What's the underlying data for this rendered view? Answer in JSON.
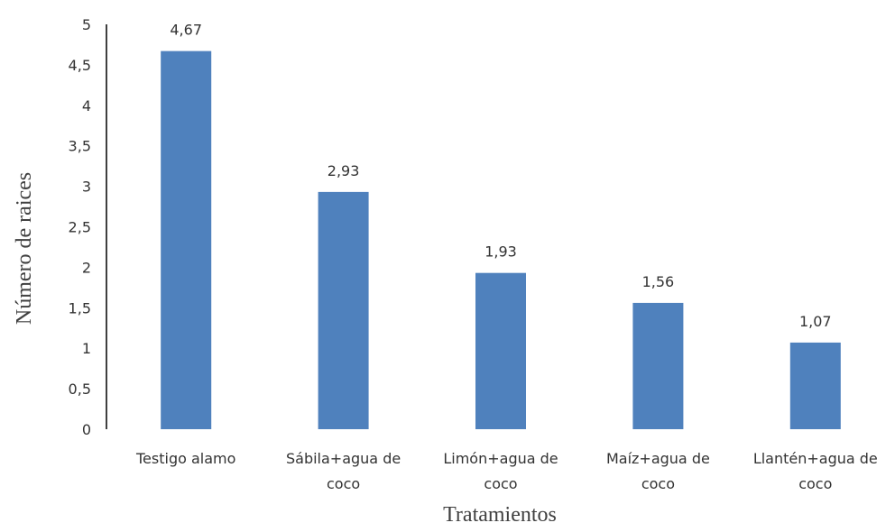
{
  "chart_data": {
    "type": "bar",
    "title": "",
    "xlabel": "Tratamientos",
    "ylabel": "Número de raices",
    "ylim": [
      0,
      5
    ],
    "yticks": [
      "0",
      "0,5",
      "1",
      "1,5",
      "2",
      "2,5",
      "3",
      "3,5",
      "4",
      "4,5",
      "5"
    ],
    "categories": [
      [
        "Testigo alamo"
      ],
      [
        "Sábila+agua de",
        "coco"
      ],
      [
        "Limón+agua de",
        "coco"
      ],
      [
        "Maíz+agua de",
        "coco"
      ],
      [
        "Llantén+agua de",
        "coco"
      ]
    ],
    "values": [
      4.67,
      2.93,
      1.93,
      1.56,
      1.07
    ],
    "data_labels": [
      "4,67",
      "2,93",
      "1,93",
      "1,56",
      "1,07"
    ],
    "grid": false,
    "legend": "none",
    "colors": {
      "bar": "#4F81BD",
      "axis": "#000000"
    }
  }
}
